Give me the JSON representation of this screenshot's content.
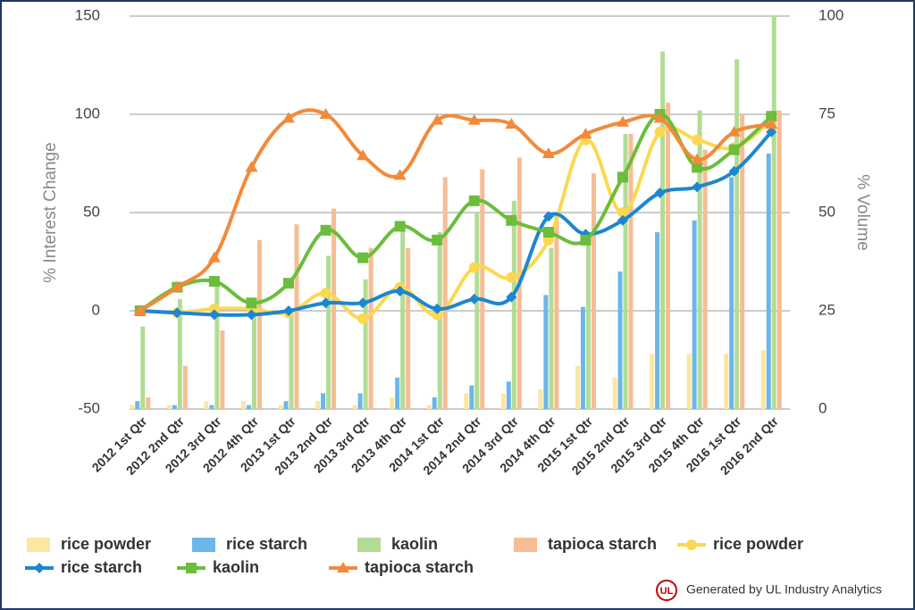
{
  "chart_data": {
    "type": "combo",
    "y_label": "% Interest Change",
    "y2_label": "% Volume",
    "categories": [
      "2012 1st Qtr",
      "2012 2nd Qtr",
      "2012 3rd Qtr",
      "2012 4th Qtr",
      "2013 1st Qtr",
      "2013 2nd Qtr",
      "2013 3rd Qtr",
      "2013 4th Qtr",
      "2014 1st Qtr",
      "2014 2nd Qtr",
      "2014 3rd Qtr",
      "2014 4th Qtr",
      "2015 1st Qtr",
      "2015 2nd Qtr",
      "2015 3rd Qtr",
      "2015 4th Qtr",
      "2016 1st Qtr",
      "2016 2nd Qtr"
    ],
    "ylim": [
      -50,
      150
    ],
    "yticks": [
      -50,
      0,
      50,
      100,
      150
    ],
    "y2lim": [
      0,
      100
    ],
    "y2ticks": [
      0,
      25,
      50,
      75,
      100
    ],
    "grid": true,
    "series": [
      {
        "name": "rice powder",
        "type": "bar",
        "axis": "y2",
        "color": "#fbe6a2",
        "values": [
          1,
          1,
          2,
          2,
          1,
          2,
          1,
          3,
          1,
          4,
          4,
          5,
          11,
          8,
          14,
          14,
          14,
          15
        ]
      },
      {
        "name": "rice starch",
        "type": "bar",
        "axis": "y2",
        "color": "#6cb6e8",
        "values": [
          2,
          1,
          1,
          1,
          2,
          4,
          4,
          8,
          3,
          6,
          7,
          29,
          26,
          35,
          45,
          48,
          59,
          65
        ]
      },
      {
        "name": "kaolin",
        "type": "bar",
        "axis": "y2",
        "color": "#b2dc95",
        "values": [
          21,
          28,
          32,
          26,
          25,
          39,
          33,
          47,
          45,
          50,
          53,
          41,
          43,
          70,
          91,
          76,
          89,
          100
        ]
      },
      {
        "name": "tapioca starch",
        "type": "bar",
        "axis": "y2",
        "color": "#f6bd94",
        "values": [
          3,
          11,
          20,
          43,
          47,
          51,
          41,
          41,
          59,
          61,
          64,
          50,
          60,
          70,
          78,
          66,
          75,
          76
        ]
      },
      {
        "name": "rice powder",
        "type": "line",
        "marker": "circle",
        "color": "#fbd84f",
        "values": [
          0,
          -1,
          1,
          1,
          -1,
          9,
          -4,
          12,
          -2,
          22,
          17,
          36,
          87,
          50,
          91,
          87,
          83,
          97
        ]
      },
      {
        "name": "rice starch",
        "type": "line",
        "marker": "diamond",
        "color": "#1d86d0",
        "values": [
          0,
          -1,
          -2,
          -2,
          0,
          4,
          4,
          10,
          1,
          6,
          7,
          48,
          39,
          46,
          60,
          63,
          71,
          91
        ]
      },
      {
        "name": "kaolin",
        "type": "line",
        "marker": "square",
        "color": "#6bbd3b",
        "values": [
          0,
          12,
          15,
          4,
          14,
          41,
          27,
          43,
          36,
          56,
          46,
          40,
          36,
          68,
          100,
          73,
          82,
          99
        ]
      },
      {
        "name": "tapioca starch",
        "type": "line",
        "marker": "triangle",
        "color": "#f28a3a",
        "values": [
          0,
          12,
          27,
          73,
          98,
          100,
          79,
          69,
          97,
          97,
          95,
          80,
          90,
          96,
          98,
          77,
          91,
          95
        ]
      }
    ],
    "footer": "Generated by UL Industry Analytics"
  }
}
